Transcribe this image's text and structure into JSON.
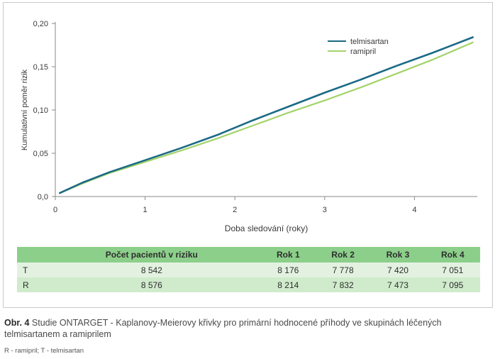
{
  "chart_data": {
    "type": "line",
    "xlabel": "Doba sledování (roky)",
    "ylabel": "Kumulativní poměr rizik",
    "xlim": [
      0,
      4.7
    ],
    "ylim": [
      0,
      0.2
    ],
    "xticks": [
      "0",
      "1",
      "2",
      "3",
      "4"
    ],
    "yticks": [
      "0,0",
      "0,05",
      "0,10",
      "0,15",
      "0,20"
    ],
    "legend_position": "top-right",
    "series": [
      {
        "name": "telmisartan",
        "color": "#1b6a86",
        "x": [
          0.05,
          0.3,
          0.6,
          1.0,
          1.4,
          1.8,
          2.2,
          2.6,
          3.0,
          3.4,
          3.8,
          4.2,
          4.65
        ],
        "y": [
          0.004,
          0.016,
          0.028,
          0.042,
          0.056,
          0.071,
          0.088,
          0.104,
          0.12,
          0.135,
          0.151,
          0.166,
          0.184
        ]
      },
      {
        "name": "ramipril",
        "color": "#a3d36a",
        "x": [
          0.05,
          0.3,
          0.6,
          1.0,
          1.4,
          1.8,
          2.2,
          2.6,
          3.0,
          3.4,
          3.8,
          4.2,
          4.65
        ],
        "y": [
          0.004,
          0.015,
          0.027,
          0.04,
          0.053,
          0.067,
          0.082,
          0.097,
          0.111,
          0.126,
          0.142,
          0.158,
          0.178
        ]
      }
    ]
  },
  "table": {
    "headers": [
      "",
      "Počet pacientů v riziku",
      "Rok 1",
      "Rok 2",
      "Rok 3",
      "Rok 4"
    ],
    "rows": [
      [
        "T",
        "8 542",
        "8 176",
        "7 778",
        "7 420",
        "7 051"
      ],
      [
        "R",
        "8 576",
        "8 214",
        "7 832",
        "7 473",
        "7 095"
      ]
    ]
  },
  "caption": {
    "figure": "Obr. 4",
    "text": "Studie ONTARGET - Kaplanovy-Meierovy křivky pro primární hodnocené příhody ve skupinách léčených telmisartanem a ramiprilem"
  },
  "note": "R - ramipril; T - telmisartan"
}
